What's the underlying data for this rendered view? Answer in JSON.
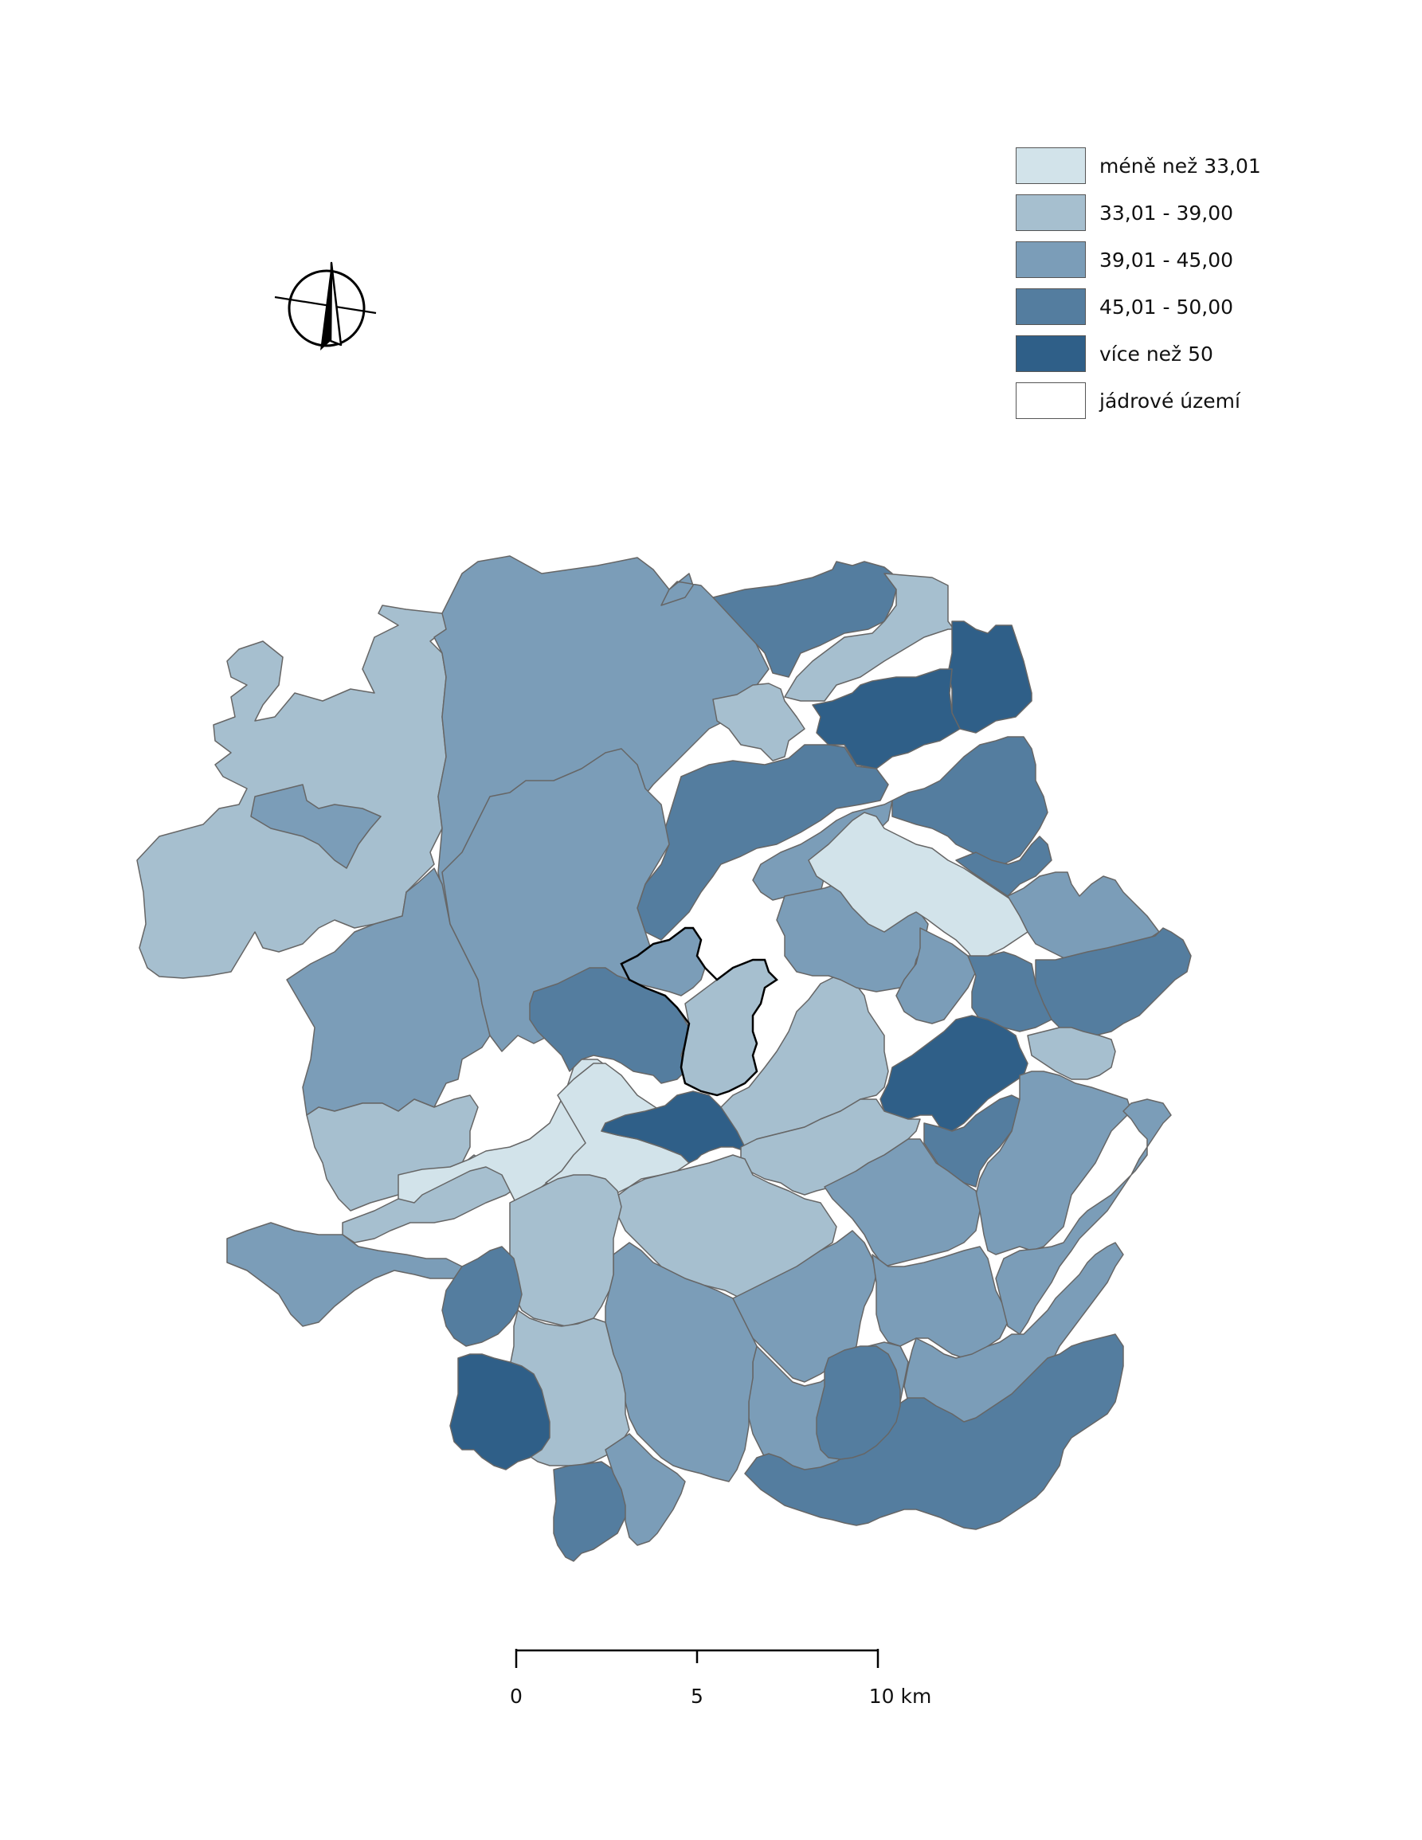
{
  "legend": {
    "items": [
      {
        "label": "méně než 33,01",
        "color": "#d2e3ea"
      },
      {
        "label": "33,01 - 39,00",
        "color": "#a6bfcf"
      },
      {
        "label": "39,01 - 45,00",
        "color": "#7b9db8"
      },
      {
        "label": "45,01 - 50,00",
        "color": "#547d9f"
      },
      {
        "label": "více než 50",
        "color": "#2f5f88"
      },
      {
        "label": "jádrové území",
        "color": "#ffffff"
      }
    ]
  },
  "scale_bar": {
    "labels": [
      "0",
      "5",
      "10 km"
    ]
  },
  "north_arrow": {
    "icon": "north-arrow-icon"
  },
  "map": {
    "border_color": "#666666",
    "core_border_color": "#000000"
  }
}
